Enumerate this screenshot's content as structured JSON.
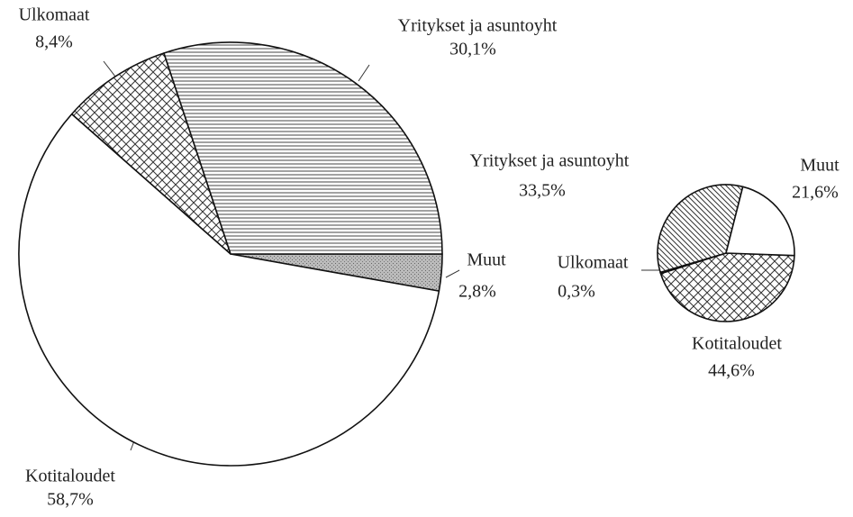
{
  "chart_data": [
    {
      "type": "pie",
      "categories": [
        "Muut",
        "Kotitaloudet",
        "Ulkomaat",
        "Yritykset ja asuntoyht"
      ],
      "values": [
        2.8,
        58.7,
        8.4,
        30.1
      ],
      "value_labels": [
        "2,8%",
        "58,7%",
        "8,4%",
        "30,1%"
      ],
      "patterns": [
        "stipple",
        "none",
        "crosshatch",
        "hlines"
      ]
    },
    {
      "type": "pie",
      "categories": [
        "Kotitaloudet",
        "Ulkomaat",
        "Yritykset ja asuntoyht",
        "Muut"
      ],
      "values": [
        44.6,
        0.3,
        33.5,
        21.6
      ],
      "value_labels": [
        "44,6%",
        "0,3%",
        "33,5%",
        "21,6%"
      ],
      "patterns": [
        "crosshatch",
        "none",
        "diagonal",
        "none"
      ]
    }
  ]
}
